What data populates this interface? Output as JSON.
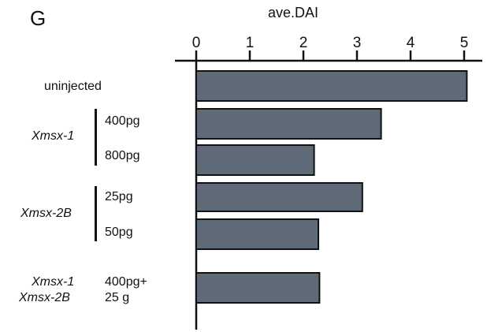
{
  "panel_label": "G",
  "chart_data": {
    "type": "bar",
    "orientation": "horizontal",
    "title": "ave.DAI",
    "xlim": [
      0,
      5.1
    ],
    "xticks": [
      "0",
      "1",
      "2",
      "3",
      "4",
      "5"
    ],
    "categories": [
      "uninjected",
      "400pg",
      "800pg",
      "25pg",
      "50pg",
      "400pg+"
    ],
    "values": [
      5.05,
      3.45,
      2.2,
      3.1,
      2.28,
      2.3
    ],
    "grid": false
  },
  "row_labels": {
    "uninjected": "uninjected",
    "xmsx1": {
      "group": "Xmsx-1",
      "dose1": "400pg",
      "dose2": "800pg"
    },
    "xmsx2b": {
      "group": "Xmsx-2B",
      "dose1": "25pg",
      "dose2": "50pg"
    },
    "combo": {
      "group1": "Xmsx-1",
      "group2": "Xmsx-2B",
      "dose1": "400pg+",
      "dose2": "25 g"
    }
  },
  "colors": {
    "bar_fill": "#5f6a78",
    "bar_stroke": "#111111",
    "axis": "#111111"
  }
}
